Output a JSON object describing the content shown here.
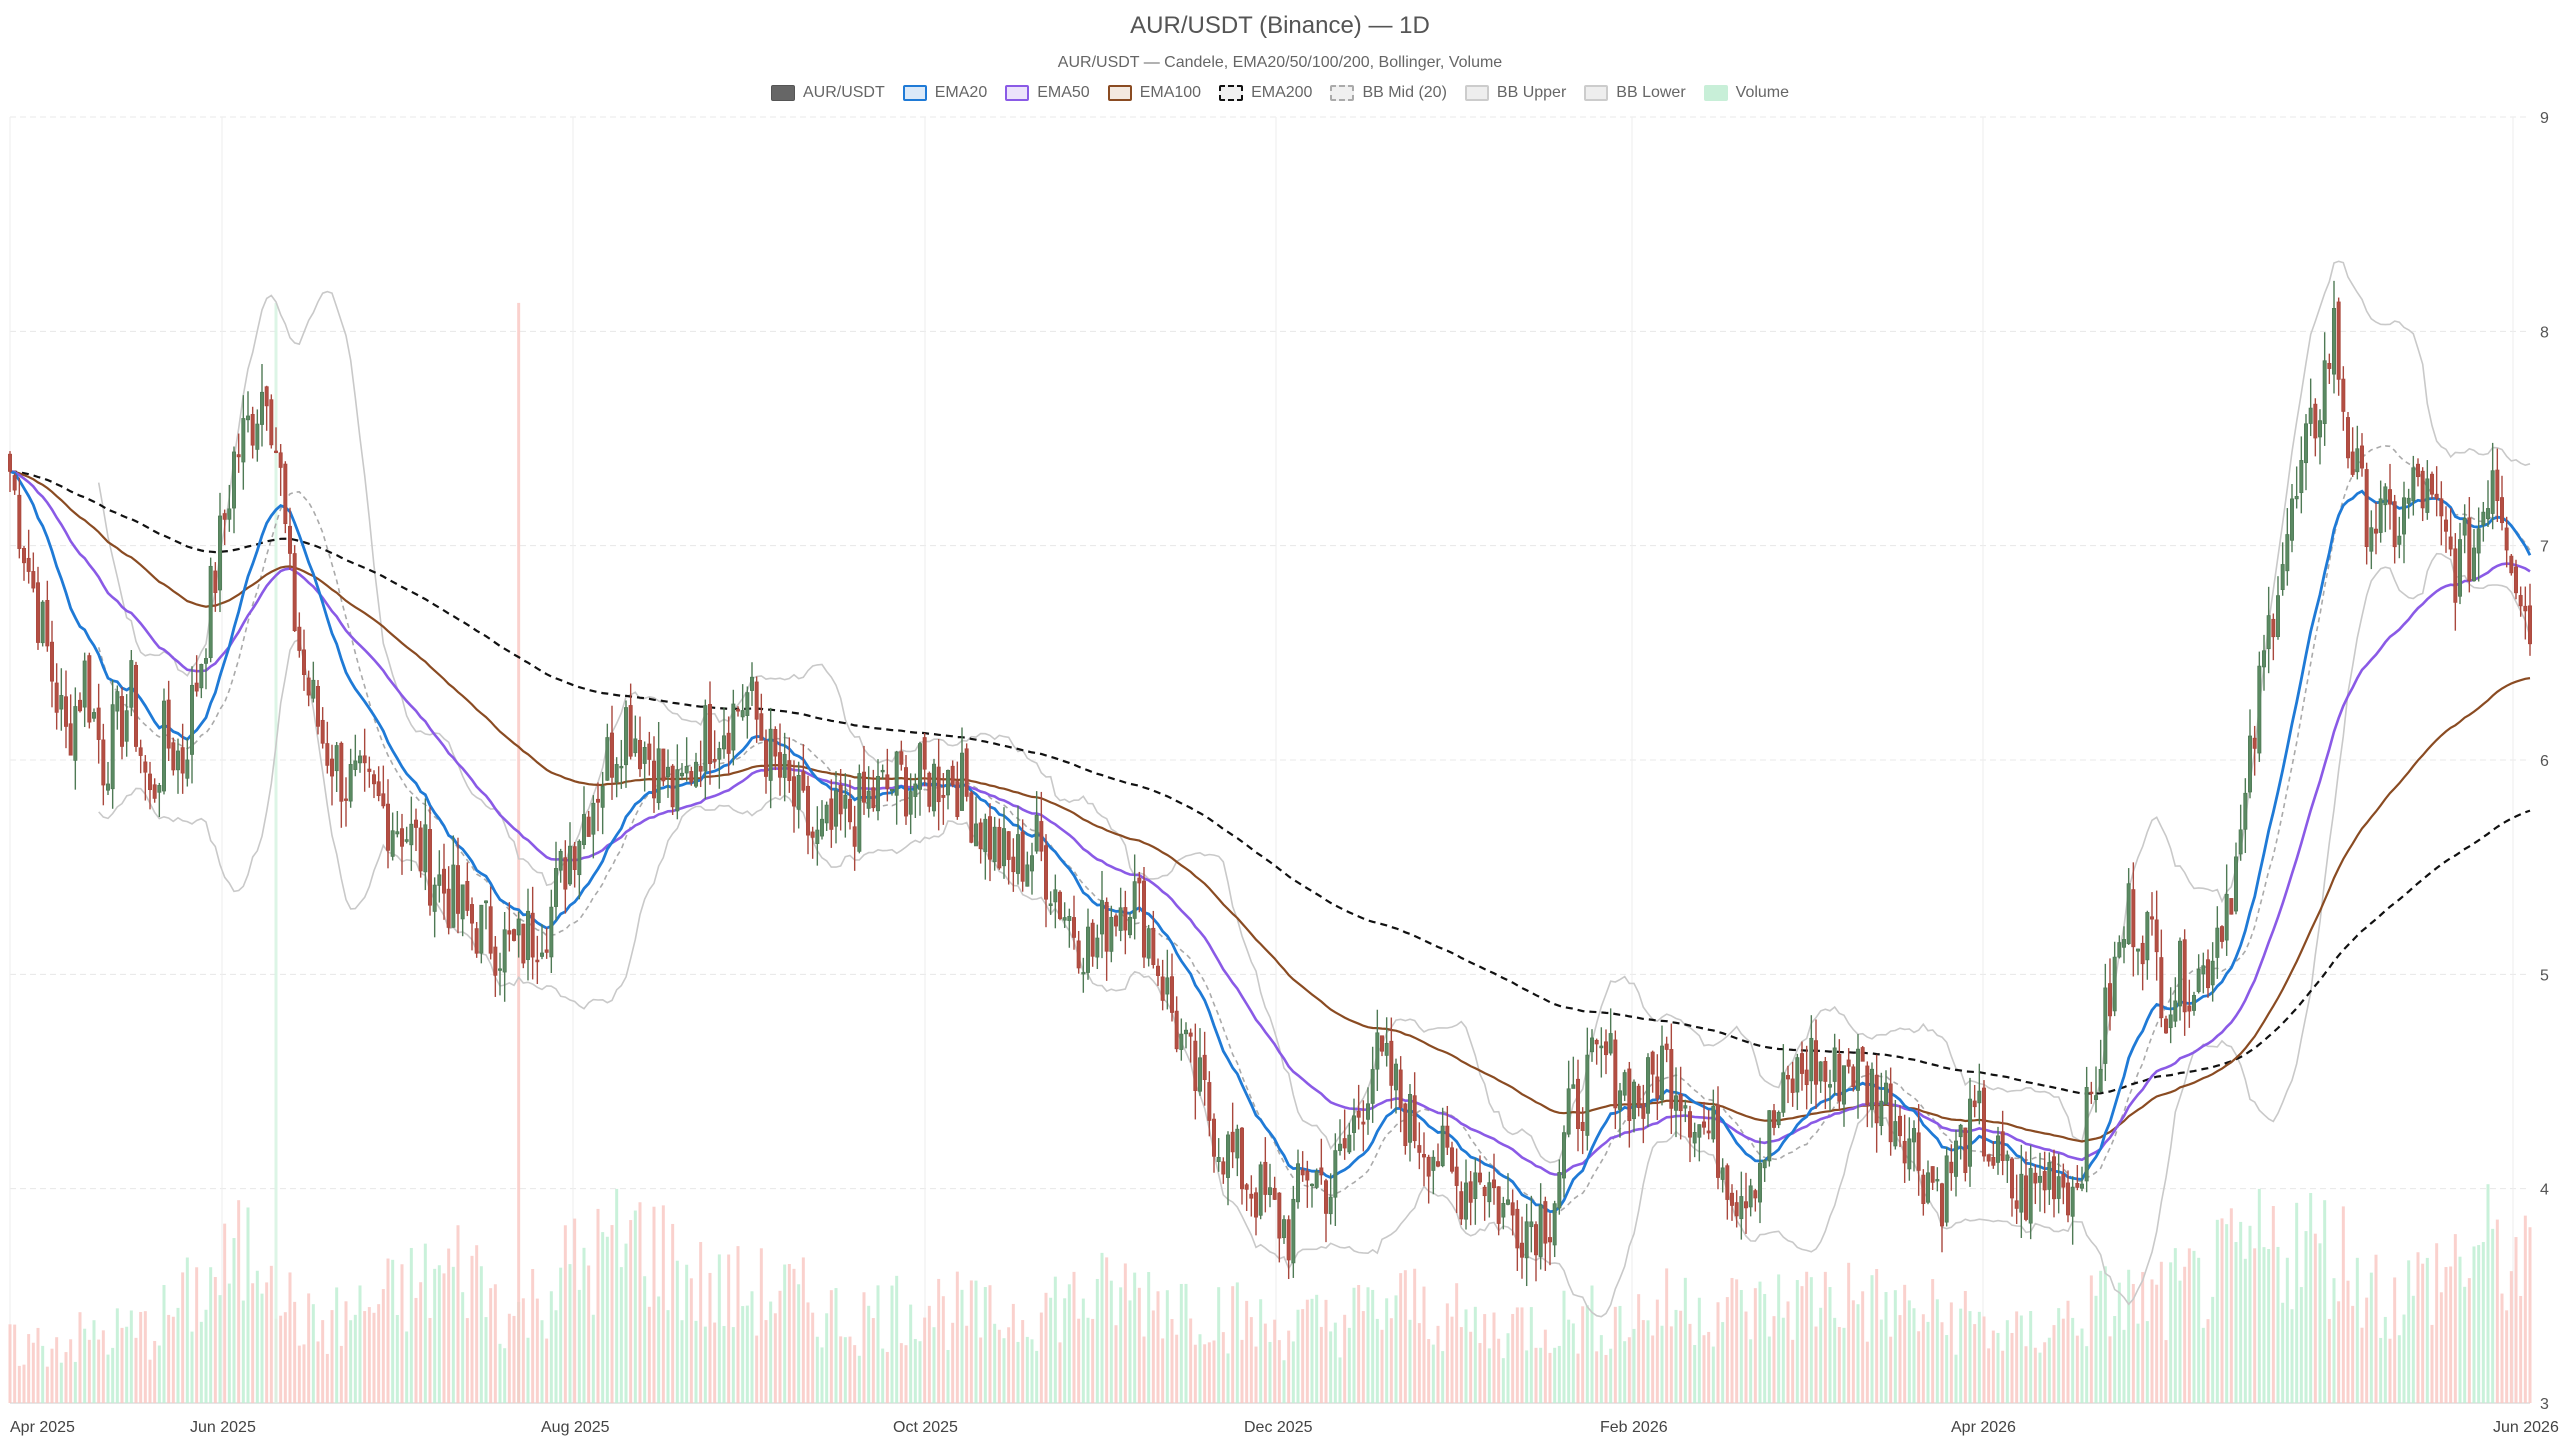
{
  "chart_data": {
    "type": "line",
    "title": "AUR/USDT (Binance) — 1D",
    "subtitle": "AUR/USDT — Candele, EMA20/50/100/200, Bollinger, Volume",
    "legend": [
      {
        "name": "AUR/USDT",
        "fill": "#666666",
        "stroke": "#555555",
        "dashed": false
      },
      {
        "name": "EMA20",
        "fill": "#dbe9f8",
        "stroke": "#1f7ad6",
        "dashed": false
      },
      {
        "name": "EMA50",
        "fill": "#ece3fb",
        "stroke": "#8a5ae6",
        "dashed": false
      },
      {
        "name": "EMA100",
        "fill": "#f3e9e0",
        "stroke": "#8a4b22",
        "dashed": false
      },
      {
        "name": "EMA200",
        "fill": "#f0f0f0",
        "stroke": "#111111",
        "dashed": true
      },
      {
        "name": "BB Mid (20)",
        "fill": "#f0f0f0",
        "stroke": "#aaaaaa",
        "dashed": true
      },
      {
        "name": "BB Upper",
        "fill": "#eeeeee",
        "stroke": "#cccccc",
        "dashed": false
      },
      {
        "name": "BB Lower",
        "fill": "#eeeeee",
        "stroke": "#cccccc",
        "dashed": false
      },
      {
        "name": "Volume",
        "fill": "#c8efd8",
        "stroke": "#c8efd8",
        "dashed": false
      }
    ],
    "x_ticks": [
      "Apr 2025",
      "Jun 2025",
      "Aug 2025",
      "Oct 2025",
      "Dec 2025",
      "Feb 2026",
      "Apr 2026",
      "Jun 2026"
    ],
    "y_ticks": [
      "9",
      "8",
      "7",
      "6",
      "5",
      "4",
      "3"
    ],
    "ylim": [
      3,
      9
    ],
    "price_anchors": [
      [
        0,
        7.35
      ],
      [
        4,
        6.9
      ],
      [
        8,
        6.5
      ],
      [
        12,
        6.1
      ],
      [
        16,
        6.4
      ],
      [
        20,
        6.0
      ],
      [
        26,
        6.3
      ],
      [
        30,
        5.8
      ],
      [
        33,
        6.1
      ],
      [
        37,
        6.0
      ],
      [
        41,
        6.5
      ],
      [
        45,
        7.0
      ],
      [
        48,
        7.4
      ],
      [
        52,
        7.6
      ],
      [
        55,
        7.8
      ],
      [
        58,
        7.3
      ],
      [
        60,
        6.8
      ],
      [
        63,
        6.4
      ],
      [
        67,
        6.1
      ],
      [
        72,
        5.9
      ],
      [
        78,
        5.8
      ],
      [
        84,
        5.7
      ],
      [
        90,
        5.5
      ],
      [
        96,
        5.3
      ],
      [
        102,
        5.2
      ],
      [
        108,
        5.1
      ],
      [
        112,
        5.2
      ],
      [
        116,
        5.3
      ],
      [
        120,
        5.6
      ],
      [
        126,
        5.9
      ],
      [
        132,
        6.2
      ],
      [
        138,
        6.0
      ],
      [
        143,
        5.8
      ],
      [
        148,
        6.1
      ],
      [
        154,
        6.2
      ],
      [
        158,
        6.3
      ],
      [
        163,
        6.0
      ],
      [
        168,
        5.8
      ],
      [
        173,
        5.6
      ],
      [
        178,
        5.7
      ],
      [
        184,
        5.8
      ],
      [
        190,
        5.9
      ],
      [
        196,
        5.9
      ],
      [
        202,
        5.95
      ],
      [
        208,
        5.7
      ],
      [
        214,
        5.5
      ],
      [
        220,
        5.6
      ],
      [
        226,
        5.3
      ],
      [
        232,
        5.1
      ],
      [
        236,
        5.3
      ],
      [
        240,
        5.4
      ],
      [
        244,
        5.2
      ],
      [
        248,
        4.9
      ],
      [
        252,
        4.6
      ],
      [
        256,
        4.4
      ],
      [
        260,
        4.2
      ],
      [
        265,
        4.05
      ],
      [
        270,
        3.9
      ],
      [
        274,
        3.8
      ],
      [
        278,
        4.1
      ],
      [
        283,
        4.0
      ],
      [
        288,
        4.3
      ],
      [
        292,
        4.6
      ],
      [
        296,
        4.5
      ],
      [
        300,
        4.3
      ],
      [
        305,
        4.2
      ],
      [
        310,
        4.0
      ],
      [
        315,
        4.1
      ],
      [
        320,
        3.9
      ],
      [
        325,
        3.85
      ],
      [
        330,
        3.9
      ],
      [
        334,
        4.3
      ],
      [
        338,
        4.5
      ],
      [
        342,
        4.6
      ],
      [
        346,
        4.5
      ],
      [
        350,
        4.4
      ],
      [
        354,
        4.6
      ],
      [
        358,
        4.5
      ],
      [
        362,
        4.3
      ],
      [
        366,
        4.2
      ],
      [
        370,
        4.0
      ],
      [
        374,
        4.1
      ],
      [
        378,
        4.3
      ],
      [
        382,
        4.5
      ],
      [
        386,
        4.6
      ],
      [
        390,
        4.5
      ],
      [
        394,
        4.6
      ],
      [
        398,
        4.5
      ],
      [
        402,
        4.4
      ],
      [
        406,
        4.3
      ],
      [
        410,
        4.1
      ],
      [
        414,
        4.0
      ],
      [
        418,
        4.2
      ],
      [
        422,
        4.3
      ],
      [
        426,
        4.1
      ],
      [
        430,
        3.95
      ],
      [
        434,
        4.0
      ],
      [
        438,
        4.1
      ],
      [
        442,
        4.0
      ],
      [
        446,
        4.4
      ],
      [
        450,
        4.9
      ],
      [
        454,
        5.3
      ],
      [
        458,
        5.2
      ],
      [
        462,
        4.9
      ],
      [
        466,
        5.0
      ],
      [
        470,
        5.0
      ],
      [
        474,
        5.3
      ],
      [
        478,
        5.6
      ],
      [
        482,
        6.3
      ],
      [
        486,
        6.9
      ],
      [
        490,
        7.2
      ],
      [
        494,
        7.6
      ],
      [
        498,
        8.0
      ],
      [
        501,
        7.5
      ],
      [
        504,
        7.2
      ],
      [
        508,
        7.1
      ],
      [
        512,
        7.1
      ],
      [
        516,
        7.3
      ],
      [
        520,
        7.1
      ],
      [
        524,
        6.9
      ],
      [
        528,
        7.0
      ],
      [
        532,
        7.4
      ],
      [
        536,
        7.0
      ],
      [
        540,
        6.6
      ]
    ],
    "volume_anchors": [
      [
        0,
        0.3
      ],
      [
        30,
        0.4
      ],
      [
        53,
        0.85
      ],
      [
        56,
        0.95
      ],
      [
        59,
        0.55
      ],
      [
        65,
        0.4
      ],
      [
        80,
        0.55
      ],
      [
        98,
        0.75
      ],
      [
        108,
        0.45
      ],
      [
        118,
        0.7
      ],
      [
        135,
        0.9
      ],
      [
        150,
        0.6
      ],
      [
        165,
        0.6
      ],
      [
        180,
        0.45
      ],
      [
        195,
        0.55
      ],
      [
        210,
        0.45
      ],
      [
        225,
        0.55
      ],
      [
        240,
        0.6
      ],
      [
        255,
        0.55
      ],
      [
        270,
        0.4
      ],
      [
        285,
        0.45
      ],
      [
        300,
        0.55
      ],
      [
        315,
        0.4
      ],
      [
        330,
        0.45
      ],
      [
        345,
        0.45
      ],
      [
        360,
        0.55
      ],
      [
        375,
        0.5
      ],
      [
        390,
        0.6
      ],
      [
        405,
        0.5
      ],
      [
        420,
        0.45
      ],
      [
        430,
        0.35
      ],
      [
        440,
        0.45
      ],
      [
        450,
        0.55
      ],
      [
        460,
        0.55
      ],
      [
        470,
        0.65
      ],
      [
        480,
        0.8
      ],
      [
        490,
        0.9
      ],
      [
        500,
        0.8
      ],
      [
        510,
        0.55
      ],
      [
        520,
        0.7
      ],
      [
        530,
        0.85
      ],
      [
        540,
        0.7
      ]
    ]
  }
}
